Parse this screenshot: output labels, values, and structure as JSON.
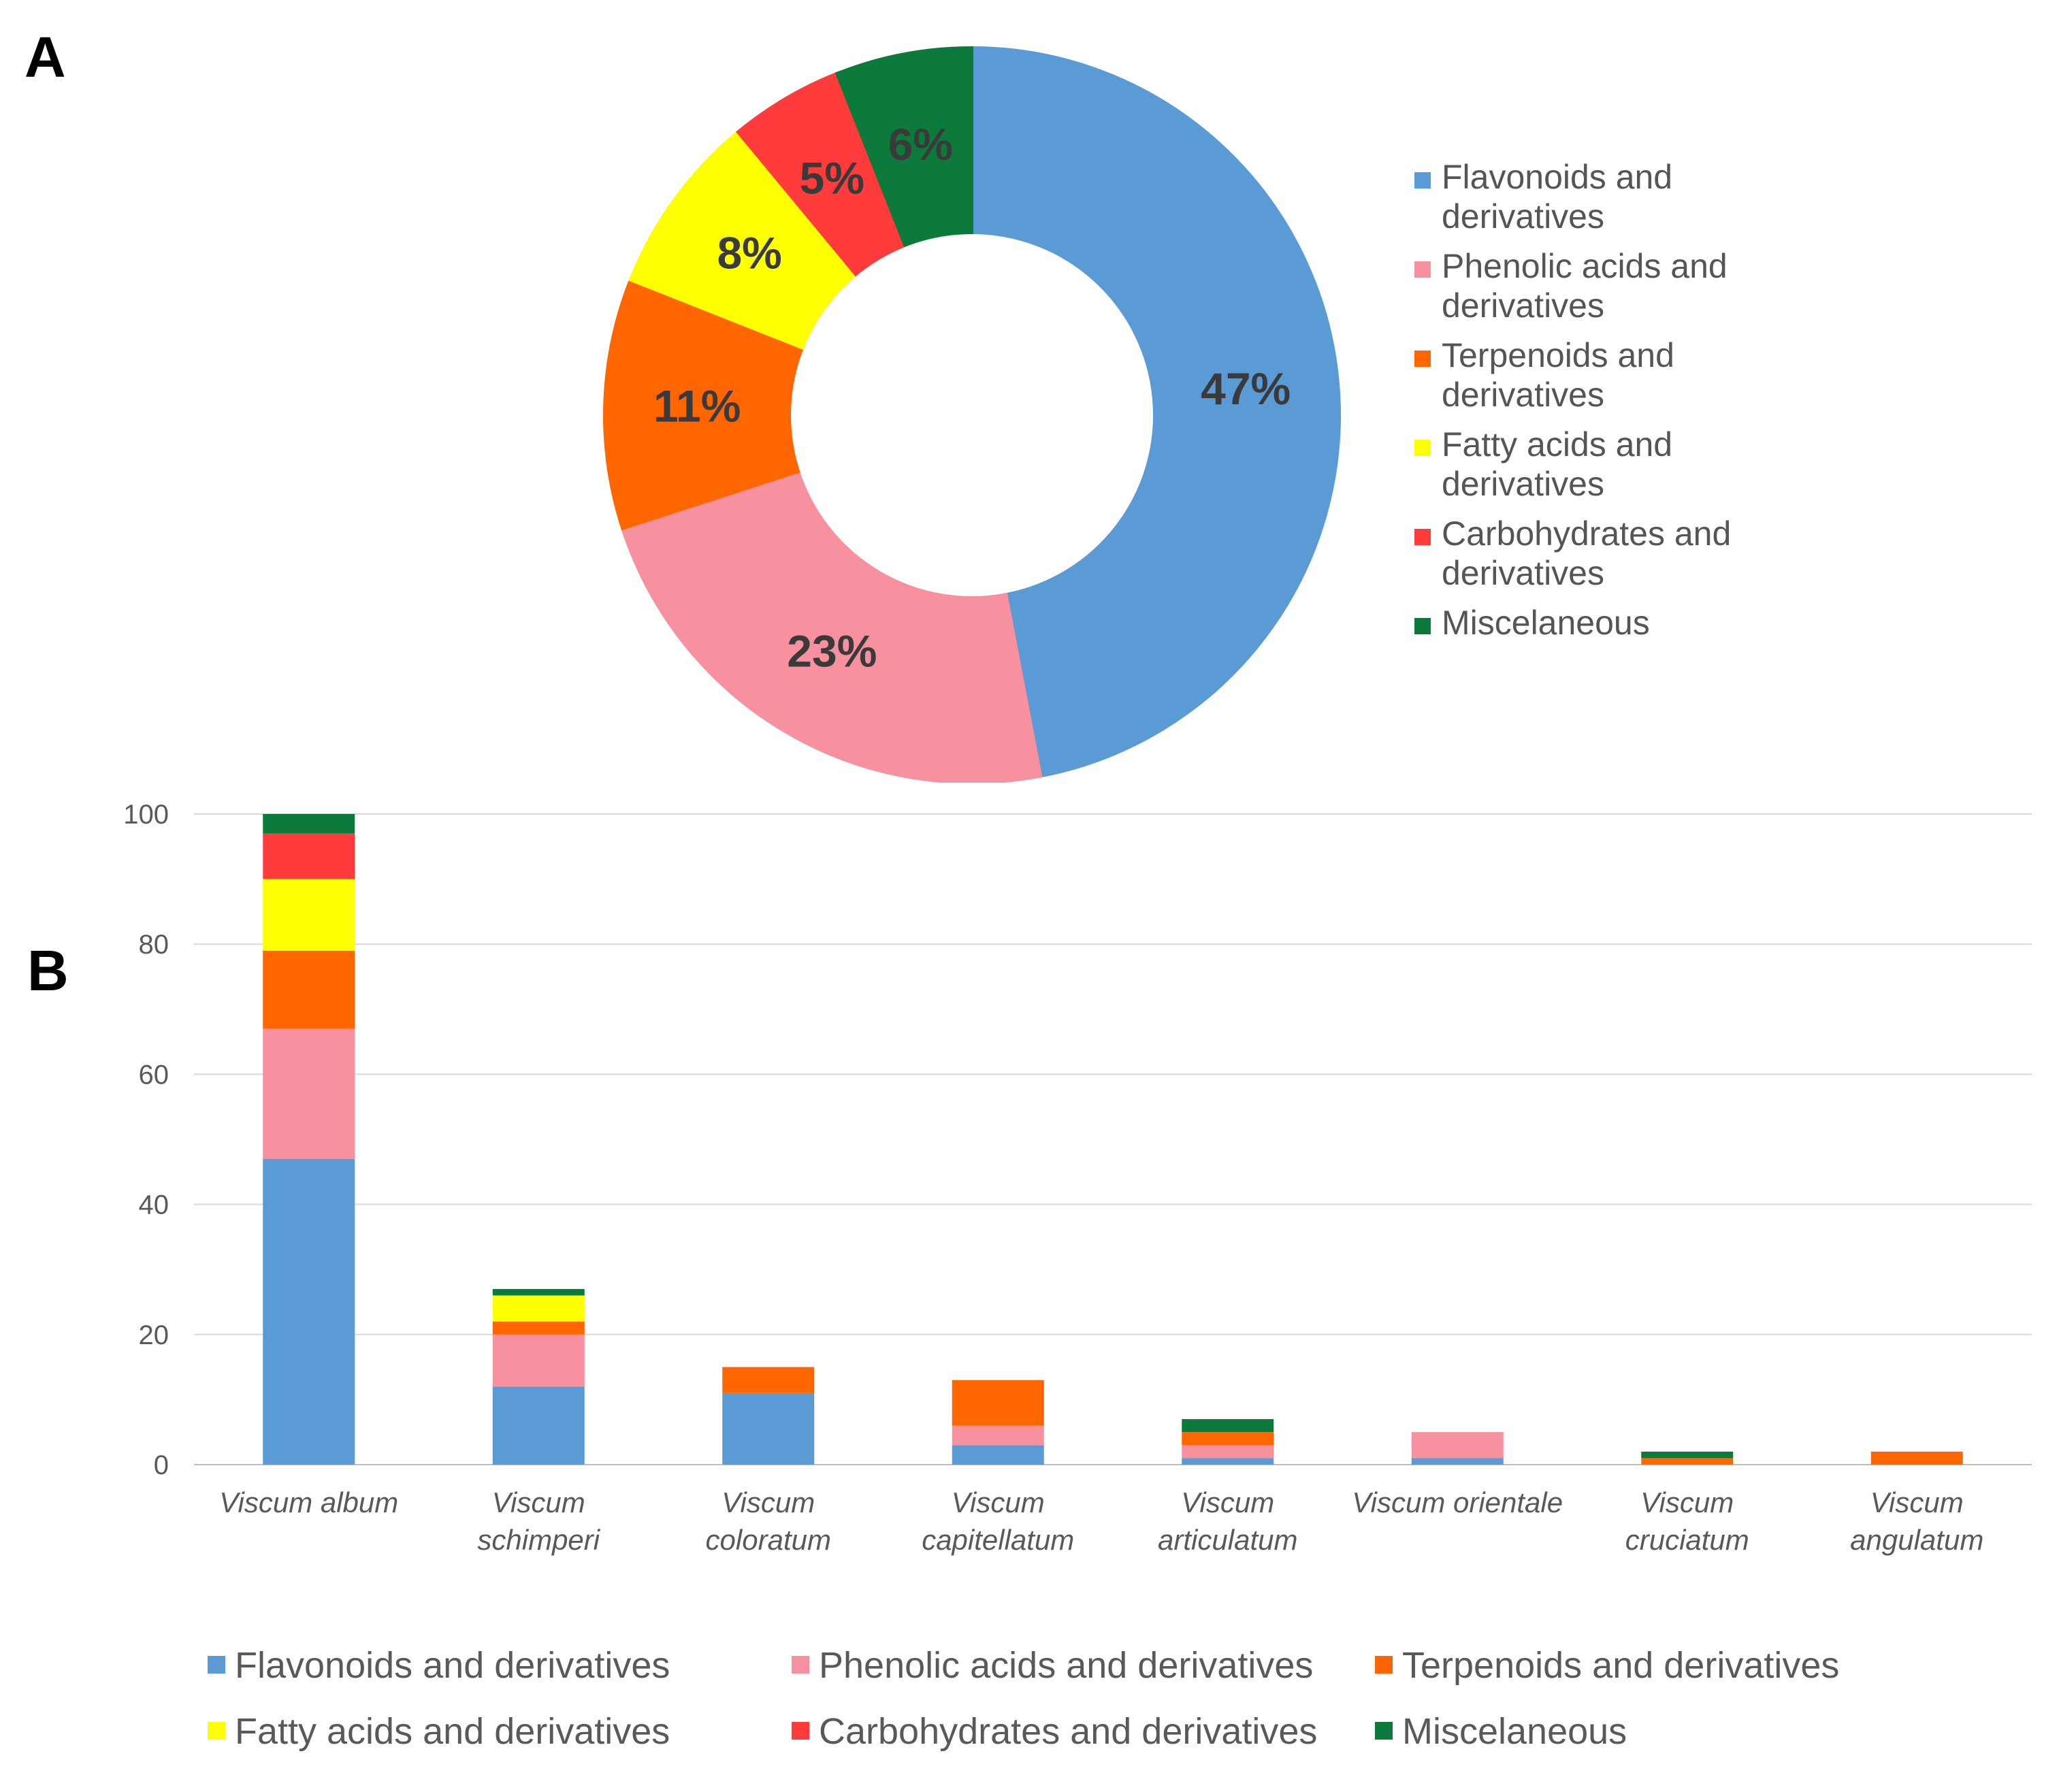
{
  "panel_labels": {
    "a": "A",
    "b": "B"
  },
  "colors": {
    "flavonoids": "#5b9bd5",
    "phenolic": "#f7909f",
    "terpenoids": "#ff6600",
    "fatty": "#ffff00",
    "carbohydrates": "#ff3b3b",
    "misc": "#0c7a3a",
    "grid": "#d9d9d9",
    "axis": "#bfbfbf"
  },
  "chart_data": [
    {
      "type": "pie",
      "variant": "donut",
      "title": "",
      "categories": [
        "Flavonoids and derivatives",
        "Phenolic acids and derivatives",
        "Terpenoids and derivatives",
        "Fatty acids and derivatives",
        "Carbohydrates and derivatives",
        "Miscelaneous"
      ],
      "legend_lines": [
        [
          "Flavonoids and",
          "derivatives"
        ],
        [
          "Phenolic acids and",
          "derivatives"
        ],
        [
          "Terpenoids and",
          "derivatives"
        ],
        [
          "Fatty acids and",
          "derivatives"
        ],
        [
          "Carbohydrates and",
          "derivatives"
        ],
        [
          "Miscelaneous"
        ]
      ],
      "values": [
        47,
        23,
        11,
        8,
        5,
        6
      ],
      "labels": [
        "47%",
        "23%",
        "11%",
        "8%",
        "5%",
        "6%"
      ],
      "color_keys": [
        "flavonoids",
        "phenolic",
        "terpenoids",
        "fatty",
        "carbohydrates",
        "misc"
      ],
      "legend_position": "right"
    },
    {
      "type": "bar",
      "stacked": true,
      "title": "",
      "xlabel": "",
      "ylabel": "",
      "ylim": [
        0,
        100
      ],
      "yticks": [
        "0",
        "20",
        "40",
        "60",
        "80",
        "100"
      ],
      "grid": true,
      "categories": [
        [
          "Viscum album"
        ],
        [
          "Viscum",
          "schimperi"
        ],
        [
          "Viscum",
          "coloratum"
        ],
        [
          "Viscum",
          "capitellatum"
        ],
        [
          "Viscum",
          "articulatum"
        ],
        [
          "Viscum orientale"
        ],
        [
          "Viscum",
          "cruciatum"
        ],
        [
          "Viscum",
          "angulatum"
        ]
      ],
      "series": [
        {
          "name": "Flavonoids and derivatives",
          "color_key": "flavonoids",
          "values": [
            47,
            12,
            11,
            3,
            1,
            1,
            0,
            0
          ]
        },
        {
          "name": "Phenolic acids and derivatives",
          "color_key": "phenolic",
          "values": [
            20,
            8,
            0,
            3,
            2,
            4,
            0,
            0
          ]
        },
        {
          "name": "Terpenoids and derivatives",
          "color_key": "terpenoids",
          "values": [
            12,
            2,
            4,
            7,
            2,
            0,
            1,
            2
          ]
        },
        {
          "name": "Fatty acids and derivatives",
          "color_key": "fatty",
          "values": [
            11,
            4,
            0,
            0,
            0,
            0,
            0,
            0
          ]
        },
        {
          "name": "Carbohydrates and derivatives",
          "color_key": "carbohydrates",
          "values": [
            7,
            0,
            0,
            0,
            0,
            0,
            0,
            0
          ]
        },
        {
          "name": "Miscelaneous",
          "color_key": "misc",
          "values": [
            3,
            1,
            0,
            0,
            2,
            0,
            1,
            0
          ]
        }
      ],
      "legend_position": "bottom"
    }
  ]
}
